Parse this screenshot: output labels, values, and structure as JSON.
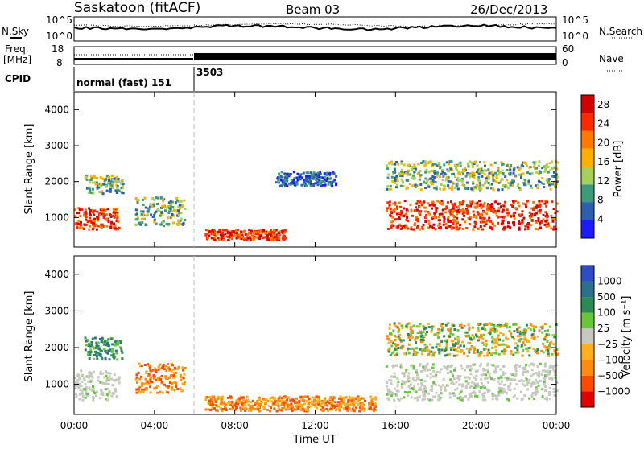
{
  "header": {
    "station": "Saskatoon (fitACF)",
    "beam": "Beam 03",
    "date": "26/Dec/2013"
  },
  "noise_panel": {
    "left_label": "N.Sky",
    "right_label": "N.Search",
    "y_ticks_left": [
      "10^5",
      "10^0"
    ],
    "y_ticks_right": [
      "10^5",
      "10^0"
    ]
  },
  "freq_panel": {
    "left_label_1": "Freq.",
    "left_label_2": "[MHz]",
    "right_label": "Nave",
    "y_ticks_left": [
      "18",
      "8"
    ],
    "y_ticks_right": [
      "60",
      "0"
    ]
  },
  "cpid_panel": {
    "label": "CPID",
    "modes": [
      "normal (fast) 151",
      "3503"
    ]
  },
  "x_axis": {
    "label": "Time UT",
    "ticks": [
      "00:00",
      "04:00",
      "08:00",
      "12:00",
      "16:00",
      "20:00",
      "00:00"
    ]
  },
  "colors": {
    "power": [
      "#1c1cff",
      "#2e5fae",
      "#3f9a7a",
      "#a6d05a",
      "#ffb000",
      "#ff7a00",
      "#ff2a00",
      "#d40000"
    ],
    "velocity": [
      "#2d4cc6",
      "#2e6f8e",
      "#2c8a55",
      "#64c83a",
      "#c8c8c0",
      "#ffb020",
      "#ff8a10",
      "#ff4a00",
      "#e00000"
    ]
  },
  "chart_data": [
    {
      "type": "heatmap",
      "ylabel": "Slant Range [km]",
      "xlabel": "",
      "y_ticks": [
        1000,
        2000,
        3000,
        4000
      ],
      "ylim": [
        180,
        4500
      ],
      "xlim": [
        0,
        24
      ],
      "colorbar": {
        "label": "Power [dB]",
        "ticks": [
          "4",
          "8",
          "12",
          "16",
          "20",
          "24",
          "28"
        ],
        "range": [
          0,
          30
        ]
      },
      "scatter_bands": [
        {
          "t_start": 0.0,
          "t_end": 2.2,
          "r_low": 700,
          "r_high": 1300,
          "level": "high"
        },
        {
          "t_start": 0.5,
          "t_end": 2.4,
          "r_low": 1700,
          "r_high": 2200,
          "level": "mid"
        },
        {
          "t_start": 3.0,
          "t_end": 5.5,
          "r_low": 800,
          "r_high": 1600,
          "level": "mid"
        },
        {
          "t_start": 6.5,
          "t_end": 10.5,
          "r_low": 400,
          "r_high": 700,
          "level": "high"
        },
        {
          "t_start": 10.0,
          "t_end": 13.0,
          "r_low": 1900,
          "r_high": 2300,
          "level": "low"
        },
        {
          "t_start": 15.5,
          "t_end": 24.0,
          "r_low": 700,
          "r_high": 1500,
          "level": "high"
        },
        {
          "t_start": 15.5,
          "t_end": 24.0,
          "r_low": 1800,
          "r_high": 2600,
          "level": "mid"
        }
      ]
    },
    {
      "type": "heatmap",
      "ylabel": "Slant Range [km]",
      "xlabel": "Time UT",
      "y_ticks": [
        1000,
        2000,
        3000,
        4000
      ],
      "ylim": [
        180,
        4500
      ],
      "xlim": [
        0,
        24
      ],
      "colorbar": {
        "label": "Velocity [m s⁻¹]",
        "ticks": [
          "1000",
          "500",
          "100",
          "25",
          "−25",
          "−100",
          "−500",
          "−1000"
        ],
        "range": [
          -1000,
          1000
        ]
      },
      "scatter_bands": [
        {
          "t_start": 0.0,
          "t_end": 2.2,
          "r_low": 600,
          "r_high": 1400,
          "level": "groundscatter"
        },
        {
          "t_start": 0.5,
          "t_end": 2.4,
          "r_low": 1700,
          "r_high": 2300,
          "level": "positive"
        },
        {
          "t_start": 3.0,
          "t_end": 5.5,
          "r_low": 800,
          "r_high": 1600,
          "level": "negative"
        },
        {
          "t_start": 6.5,
          "t_end": 15.0,
          "r_low": 300,
          "r_high": 700,
          "level": "negative"
        },
        {
          "t_start": 15.5,
          "t_end": 24.0,
          "r_low": 600,
          "r_high": 1600,
          "level": "groundscatter"
        },
        {
          "t_start": 15.5,
          "t_end": 24.0,
          "r_low": 1800,
          "r_high": 2700,
          "level": "mixed"
        }
      ]
    }
  ]
}
